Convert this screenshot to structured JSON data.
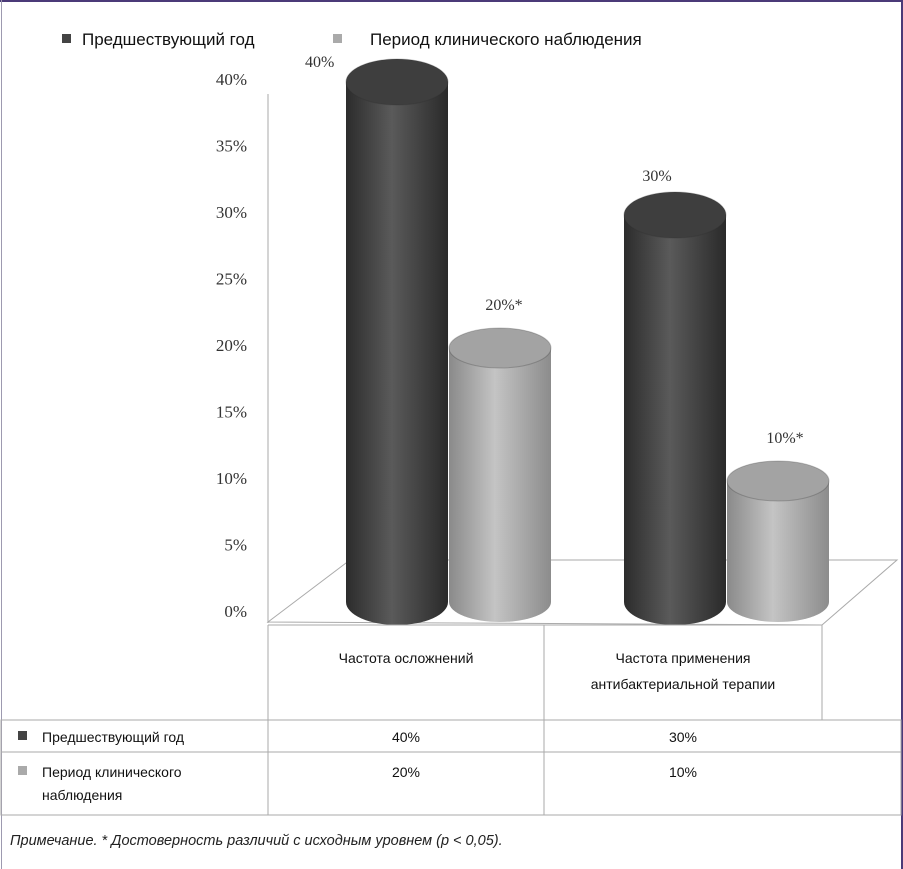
{
  "chart_data": {
    "type": "bar",
    "style": "3d-cylinder",
    "categories": [
      "Частота осложнений",
      "Частота применения антибактериальной терапии"
    ],
    "series": [
      {
        "name": "Предшествующий год",
        "values": [
          40,
          30
        ],
        "labels": [
          "40%",
          "30%"
        ],
        "color": "#4a4a4a"
      },
      {
        "name": "Период клинического наблюдения",
        "values": [
          20,
          10
        ],
        "labels": [
          "20%*",
          "10%*"
        ],
        "color": "#a8a8a8"
      }
    ],
    "ylim": [
      0,
      40
    ],
    "yticks": [
      "0%",
      "5%",
      "10%",
      "15%",
      "20%",
      "25%",
      "30%",
      "35%",
      "40%"
    ],
    "legend_position": "top-left",
    "grid": false,
    "data_table": {
      "rows": [
        {
          "label": "Предшествующий год",
          "values": [
            "40%",
            "30%"
          ]
        },
        {
          "label": "Период клинического наблюдения",
          "values": [
            "20%",
            "10%"
          ]
        }
      ]
    }
  },
  "note": "Примечание. * Достоверность различий с исходным уровнем (р < 0,05)."
}
